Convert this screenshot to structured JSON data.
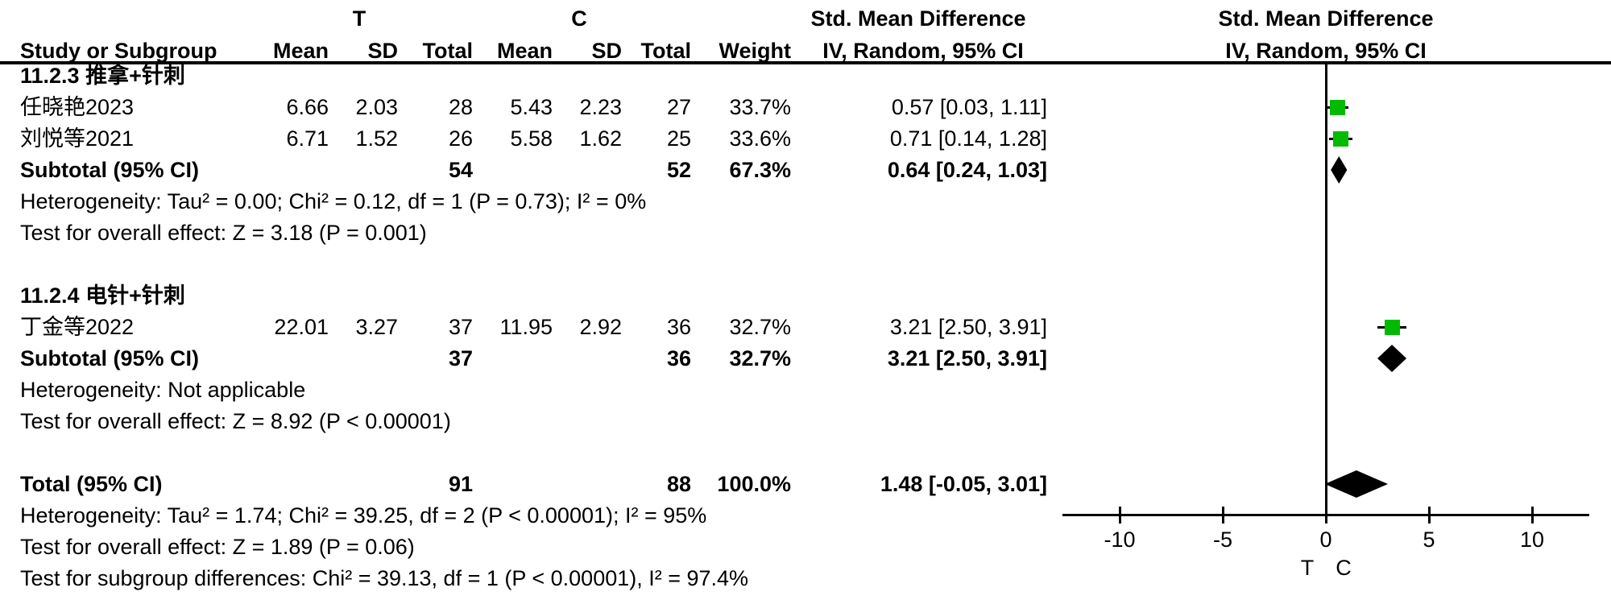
{
  "header": {
    "t_group": "T",
    "c_group": "C",
    "smd_left": "Std. Mean Difference",
    "smd_right": "Std. Mean Difference",
    "method_left": "IV, Random, 95% CI",
    "method_right": "IV, Random, 95% CI",
    "study_col": "Study or Subgroup",
    "mean_col_t": "Mean",
    "sd_col_t": "SD",
    "total_col_t": "Total",
    "mean_col_c": "Mean",
    "sd_col_c": "SD",
    "total_col_c": "Total",
    "weight_col": "Weight"
  },
  "table": {
    "rows": [
      {
        "type": "subgroup",
        "label": "11.2.3 推拿+针刺"
      },
      {
        "type": "study",
        "label": "任晓艳2023",
        "mean_t": "6.66",
        "sd_t": "2.03",
        "total_t": "28",
        "mean_c": "5.43",
        "sd_c": "2.23",
        "total_c": "27",
        "weight": "33.7%",
        "ci_text": "0.57 [0.03, 1.11]"
      },
      {
        "type": "study",
        "label": "刘悦等2021",
        "mean_t": "6.71",
        "sd_t": "1.52",
        "total_t": "26",
        "mean_c": "5.58",
        "sd_c": "1.62",
        "total_c": "25",
        "weight": "33.6%",
        "ci_text": "0.71 [0.14, 1.28]"
      },
      {
        "type": "subtotal",
        "label": "Subtotal (95% CI)",
        "total_t": "54",
        "total_c": "52",
        "weight": "67.3%",
        "ci_text": "0.64 [0.24, 1.03]"
      },
      {
        "type": "note",
        "label": "Heterogeneity: Tau² = 0.00; Chi² = 0.12, df = 1 (P = 0.73); I² = 0%"
      },
      {
        "type": "note",
        "label": "Test for overall effect: Z = 3.18 (P = 0.001)"
      },
      {
        "type": "blank",
        "label": ""
      },
      {
        "type": "subgroup",
        "label": "11.2.4 电针+针刺"
      },
      {
        "type": "study",
        "label": "丁金等2022",
        "mean_t": "22.01",
        "sd_t": "3.27",
        "total_t": "37",
        "mean_c": "11.95",
        "sd_c": "2.92",
        "total_c": "36",
        "weight": "32.7%",
        "ci_text": "3.21 [2.50, 3.91]"
      },
      {
        "type": "subtotal",
        "label": "Subtotal (95% CI)",
        "total_t": "37",
        "total_c": "36",
        "weight": "32.7%",
        "ci_text": "3.21 [2.50, 3.91]"
      },
      {
        "type": "note",
        "label": "Heterogeneity: Not applicable"
      },
      {
        "type": "note",
        "label": "Test for overall effect: Z = 8.92 (P < 0.00001)"
      },
      {
        "type": "blank",
        "label": ""
      },
      {
        "type": "total",
        "label": "Total (95% CI)",
        "total_t": "91",
        "total_c": "88",
        "weight": "100.0%",
        "ci_text": "1.48 [-0.05, 3.01]"
      },
      {
        "type": "note",
        "label": "Heterogeneity: Tau² = 1.74; Chi² = 39.25, df = 2 (P < 0.00001); I² = 95%"
      },
      {
        "type": "note",
        "label": "Test for overall effect: Z = 1.89 (P = 0.06)"
      },
      {
        "type": "note",
        "label": "Test for subgroup differences: Chi² = 39.13, df = 1 (P < 0.00001), I² = 97.4%"
      }
    ]
  },
  "chart_data": {
    "type": "forest",
    "effect_measure": "Std. Mean Difference",
    "method": "IV, Random, 95% CI",
    "x_ticks": [
      -10,
      -5,
      0,
      5,
      10
    ],
    "x_range": [
      -12.77,
      12.77
    ],
    "zero_line": 0,
    "favours": {
      "left": "T",
      "right": "C"
    },
    "markers": [
      {
        "row": 1,
        "study": "任晓艳2023",
        "kind": "square",
        "est": 0.57,
        "lo": 0.03,
        "hi": 1.11,
        "weight_pct": 33.7
      },
      {
        "row": 2,
        "study": "刘悦等2021",
        "kind": "square",
        "est": 0.71,
        "lo": 0.14,
        "hi": 1.28,
        "weight_pct": 33.6
      },
      {
        "row": 3,
        "study": "Subtotal 11.2.3",
        "kind": "diamond",
        "est": 0.64,
        "lo": 0.24,
        "hi": 1.03
      },
      {
        "row": 8,
        "study": "丁金等2022",
        "kind": "square",
        "est": 3.21,
        "lo": 2.5,
        "hi": 3.91,
        "weight_pct": 32.7
      },
      {
        "row": 9,
        "study": "Subtotal 11.2.4",
        "kind": "diamond",
        "est": 3.21,
        "lo": 2.5,
        "hi": 3.91
      },
      {
        "row": 13,
        "study": "Total",
        "kind": "diamond",
        "est": 1.48,
        "lo": -0.05,
        "hi": 3.01
      }
    ]
  },
  "colors": {
    "square_green": "#00bb00",
    "diamond_black": "#000000",
    "line_black": "#000000",
    "text": "#000000"
  }
}
